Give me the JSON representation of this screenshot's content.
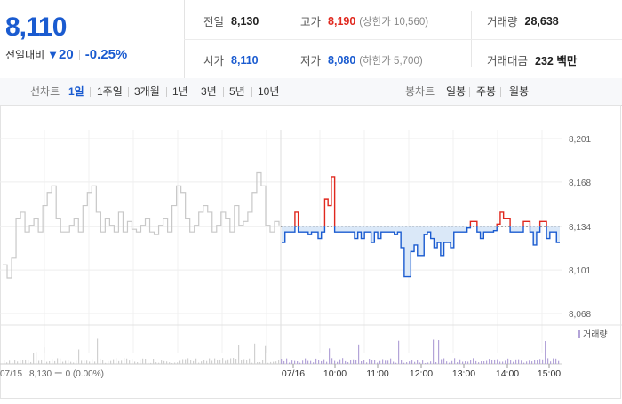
{
  "quote": {
    "price": "8,110",
    "change_label": "전일대비",
    "change_dir_icon": "down-triangle-icon",
    "change_amount": "20",
    "change_pct": "-0.25%",
    "prev_close_label": "전일",
    "prev_close": "8,130",
    "high_label": "고가",
    "high": "8,190",
    "upper_limit": "(상한가 10,560)",
    "volume_label": "거래량",
    "volume": "28,638",
    "open_label": "시가",
    "open": "8,110",
    "low_label": "저가",
    "low": "8,080",
    "lower_limit": "(하한가 5,700)",
    "amount_label": "거래대금",
    "amount": "232 백만"
  },
  "periods": {
    "label": "선차트",
    "items": [
      "1일",
      "1주일",
      "3개월",
      "1년",
      "3년",
      "5년",
      "10년"
    ],
    "selected": "1일"
  },
  "candles": {
    "label": "봉차트",
    "items": [
      "일봉",
      "주봉",
      "월봉"
    ]
  },
  "chart_data": {
    "type": "line",
    "y_ticks": [
      "8,201",
      "8,168",
      "8,134",
      "8,101",
      "8,068"
    ],
    "ylim": [
      8068,
      8201
    ],
    "reference_value": 8134,
    "x_tick_labels": [
      "07/16",
      "10:00",
      "11:00",
      "12:00",
      "13:00",
      "14:00",
      "15:00"
    ],
    "prev_day_label": "07/15",
    "prev_day_summary": "8,130 ー 0 (0.00%)",
    "volume_legend": "거래량",
    "colors": {
      "up": "#e0281e",
      "down": "#1a5bd0",
      "fill": "#d6e6f7",
      "prev": "#c8c8c8",
      "volume": "#b3a4d8"
    },
    "prev_day_series": [
      8105,
      8095,
      8110,
      8140,
      8145,
      8130,
      8135,
      8140,
      8130,
      8150,
      8160,
      8165,
      8140,
      8130,
      8130,
      8135,
      8140,
      8130,
      8150,
      8160,
      8165,
      8145,
      8130,
      8140,
      8135,
      8130,
      8145,
      8130,
      8138,
      8132,
      8130,
      8135,
      8140,
      8130,
      8128,
      8135,
      8140,
      8130,
      8150,
      8165,
      8160,
      8140,
      8130,
      8135,
      8145,
      8150,
      8145,
      8130,
      8135,
      8145,
      8140,
      8130,
      8150,
      8135,
      8138,
      8145,
      8160,
      8175,
      8165,
      8135,
      8130,
      8138,
      8135
    ],
    "today_series": [
      8122,
      8130,
      8130,
      8130,
      8145,
      8130,
      8130,
      8130,
      8128,
      8130,
      8130,
      8125,
      8130,
      8155,
      8150,
      8172,
      8130,
      8130,
      8130,
      8130,
      8130,
      8130,
      8125,
      8130,
      8125,
      8130,
      8130,
      8122,
      8130,
      8125,
      8130,
      8130,
      8130,
      8130,
      8128,
      8130,
      8118,
      8096,
      8096,
      8115,
      8120,
      8112,
      8112,
      8128,
      8130,
      8125,
      8118,
      8122,
      8112,
      8122,
      8122,
      8118,
      8130,
      8130,
      8130,
      8130,
      8133,
      8138,
      8138,
      8130,
      8125,
      8130,
      8130,
      8130,
      8131,
      8136,
      8145,
      8140,
      8140,
      8130,
      8130,
      8130,
      8130,
      8138,
      8138,
      8130,
      8120,
      8130,
      8138,
      8138,
      8125,
      8130,
      8130,
      8122,
      8122
    ]
  }
}
